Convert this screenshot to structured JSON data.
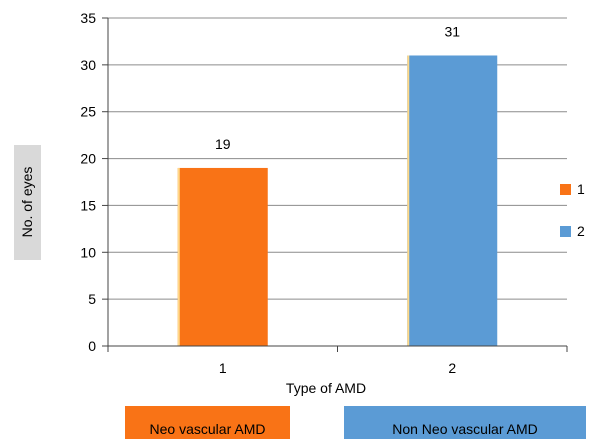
{
  "chart_data": {
    "type": "bar",
    "categories": [
      "1",
      "2"
    ],
    "series": [
      {
        "name": "1",
        "values": [
          19,
          null
        ],
        "color": "#f97316"
      },
      {
        "name": "2",
        "values": [
          null,
          31
        ],
        "color": "#5b9bd5"
      }
    ],
    "data_labels": [
      "19",
      "31"
    ],
    "xlabel": "Type of AMD",
    "ylabel": "No. of eyes",
    "ylim": [
      0,
      35
    ],
    "yticks": [
      0,
      5,
      10,
      15,
      20,
      25,
      30,
      35
    ],
    "grid": "horizontal",
    "legend_placement": "right"
  },
  "legend": [
    {
      "label": "1",
      "color": "#f97316"
    },
    {
      "label": "2",
      "color": "#5b9bd5"
    }
  ],
  "footer": [
    {
      "label": "Neo vascular AMD",
      "color": "#f97316"
    },
    {
      "label": "Non Neo vascular AMD",
      "color": "#5b9bd5"
    }
  ]
}
